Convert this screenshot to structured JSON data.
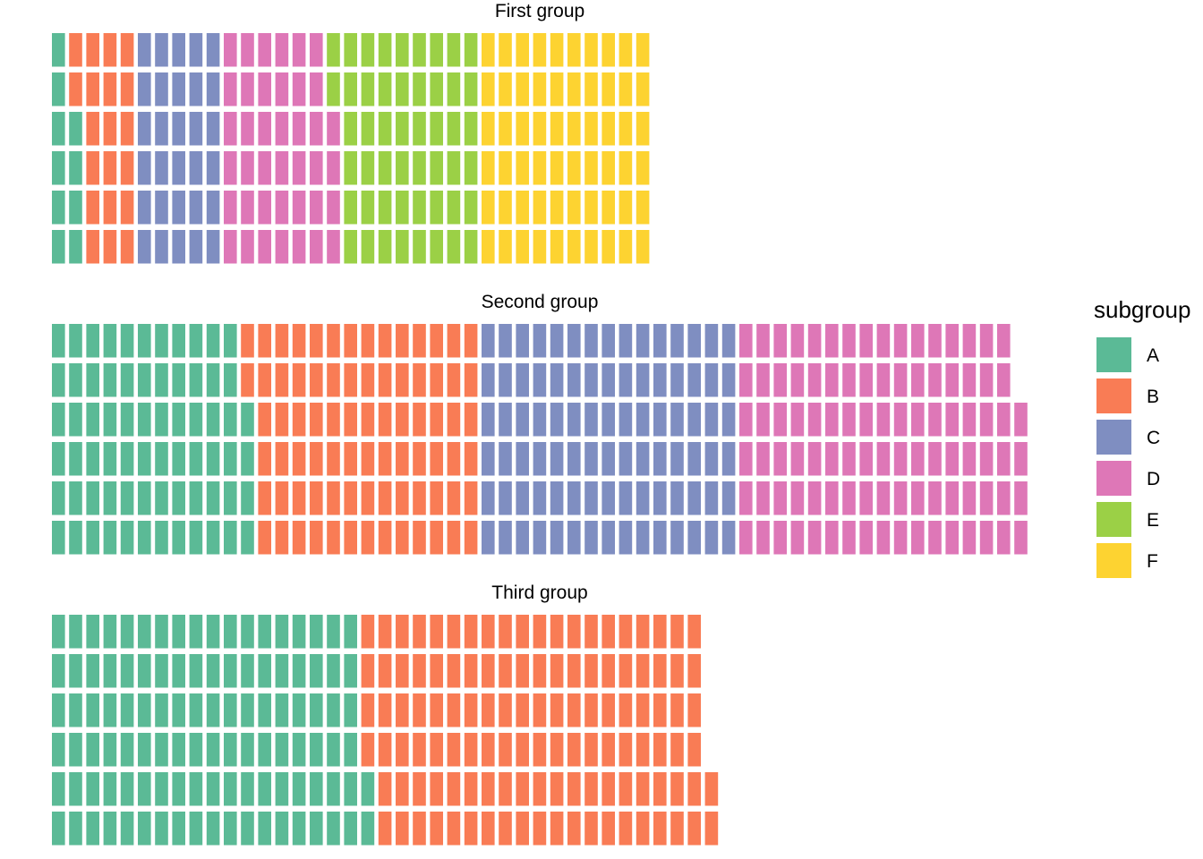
{
  "chart_data": {
    "type": "waffle",
    "legend": {
      "title": "subgroup",
      "position": "right",
      "entries": [
        {
          "name": "A",
          "color": "#5BBA96"
        },
        {
          "name": "B",
          "color": "#F97C55"
        },
        {
          "name": "C",
          "color": "#7F8EC1"
        },
        {
          "name": "D",
          "color": "#DE77B7"
        },
        {
          "name": "E",
          "color": "#9BD046"
        },
        {
          "name": "F",
          "color": "#FDD331"
        }
      ]
    },
    "grid": false,
    "rows_per_panel": 6,
    "panels": [
      {
        "title": "First group",
        "values": {
          "A": 10,
          "B": 20,
          "C": 30,
          "D": 40,
          "E": 50,
          "F": 60
        }
      },
      {
        "title": "Second group",
        "values": {
          "A": 70,
          "B": 80,
          "C": 90,
          "D": 100
        }
      },
      {
        "title": "Third group",
        "values": {
          "A": 110,
          "B": 120
        }
      }
    ]
  }
}
